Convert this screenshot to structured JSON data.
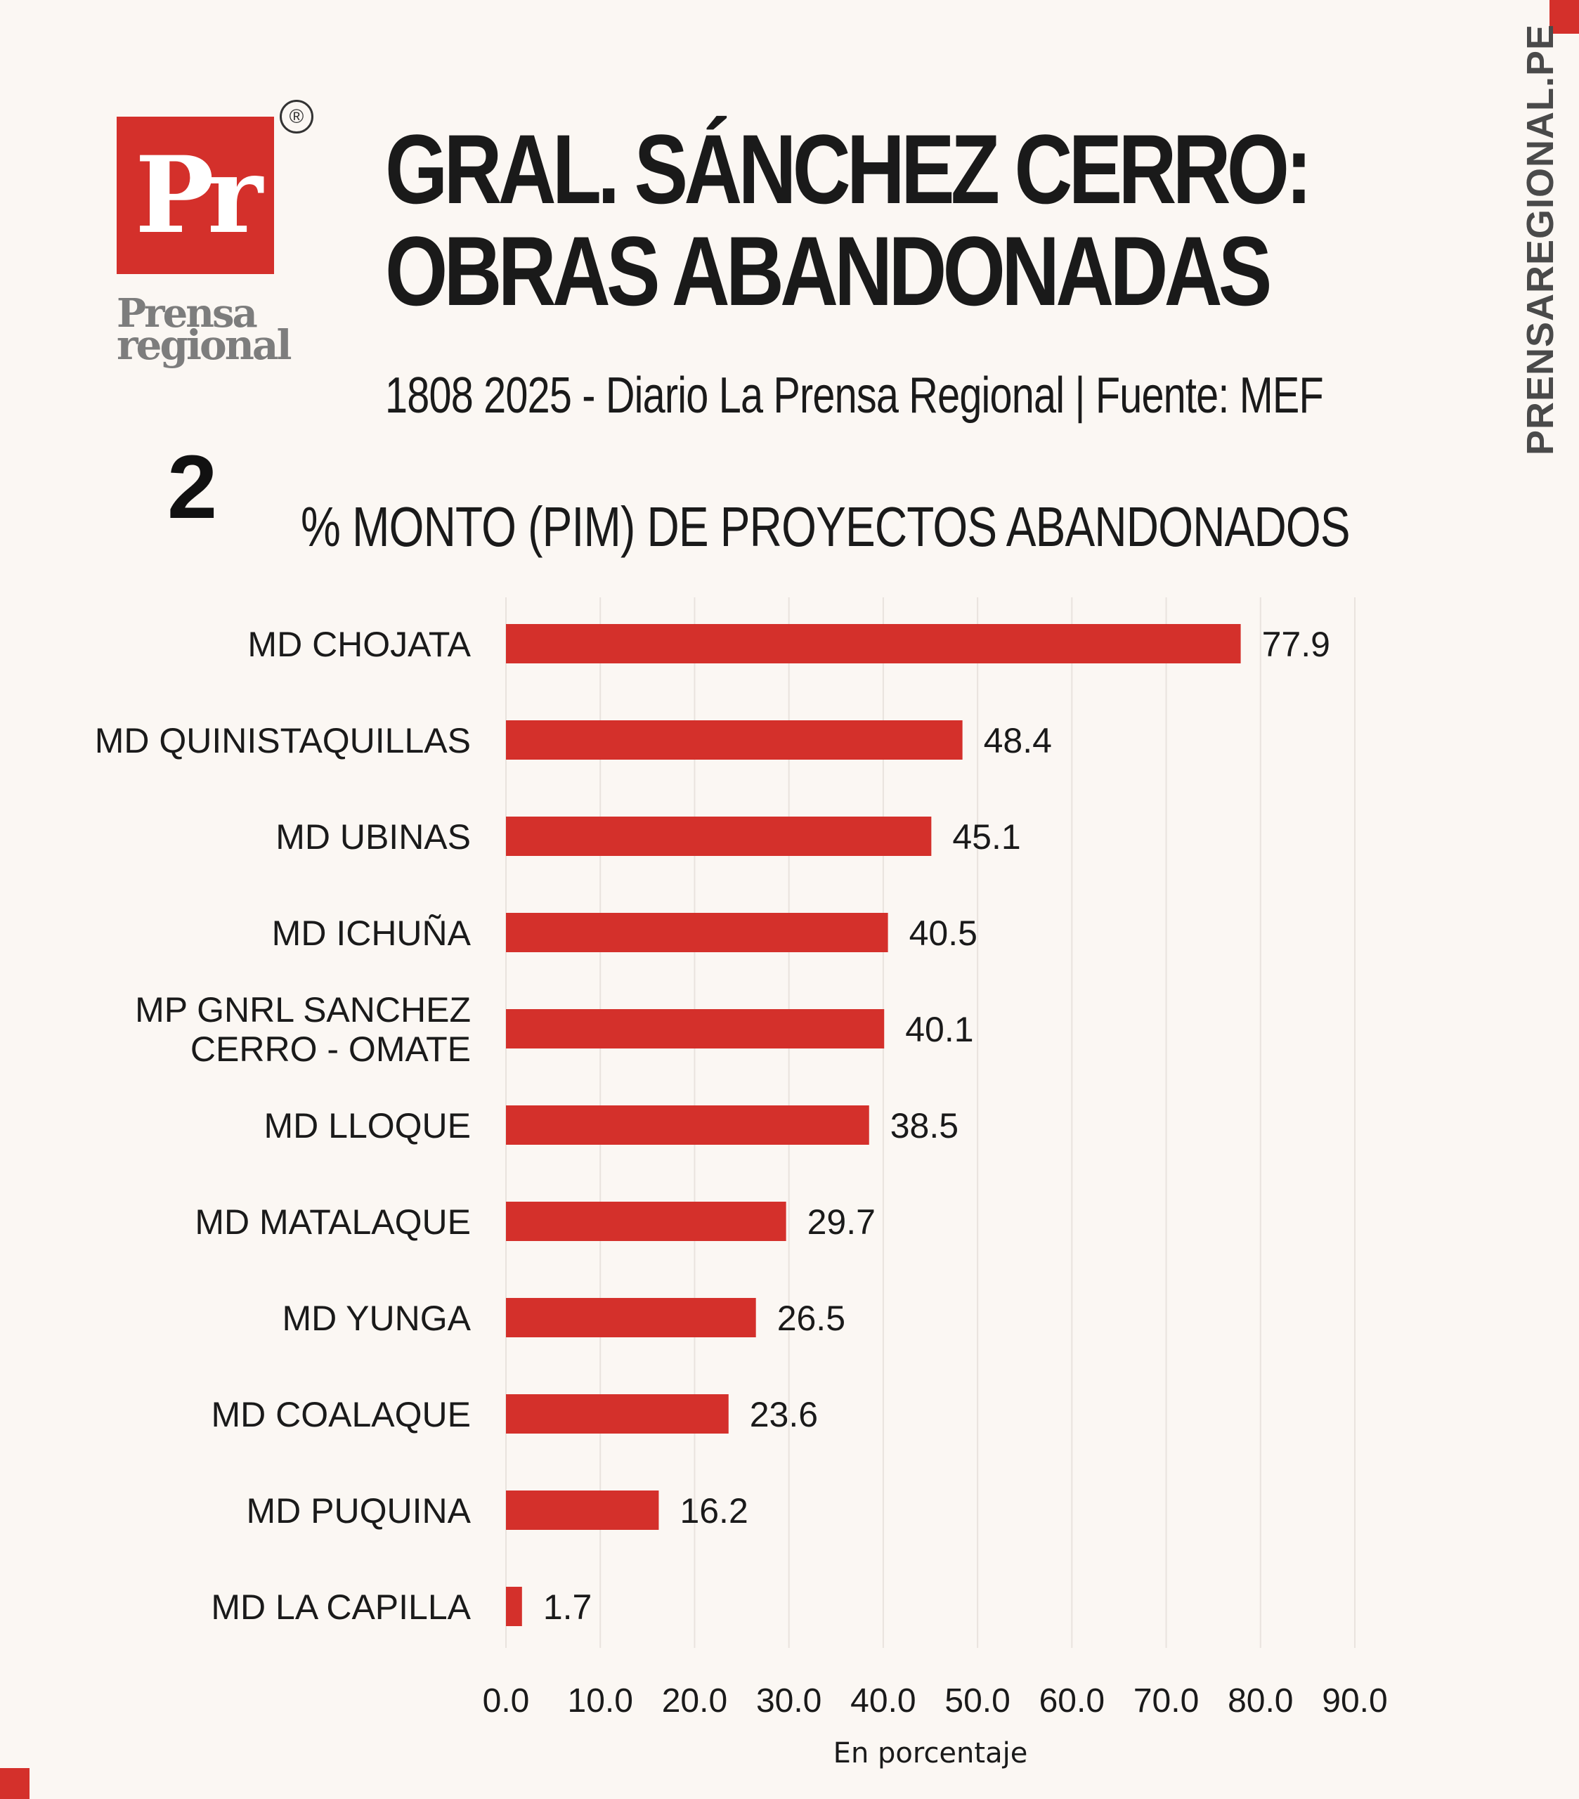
{
  "brand": {
    "logo_mark": "Pr",
    "logo_word_1": "Prensa",
    "logo_word_2": "regional",
    "registered": "®",
    "side_url": "PRENSAREGIONAL.PE",
    "accent_color": "#d4302b"
  },
  "header": {
    "title_line1": "GRAL. SÁNCHEZ CERRO:",
    "title_line2": "OBRAS ABANDONADAS",
    "subtitle": "1808 2025 - Diario La Prensa Regional | Fuente: MEF"
  },
  "chart_number": "2",
  "chart_data": {
    "type": "bar",
    "orientation": "horizontal",
    "title": "% MONTO (PIM) DE PROYECTOS ABANDONADOS",
    "xlabel": "En porcentaje",
    "ylabel": "",
    "categories": [
      "MD CHOJATA",
      "MD QUINISTAQUILLAS",
      "MD UBINAS",
      "MD ICHUÑA",
      "MP GNRL SANCHEZ CERRO - OMATE",
      "MD LLOQUE",
      "MD MATALAQUE",
      "MD YUNGA",
      "MD  COALAQUE",
      "MD PUQUINA",
      "MD LA CAPILLA"
    ],
    "category_lines": [
      [
        "MD CHOJATA"
      ],
      [
        "MD QUINISTAQUILLAS"
      ],
      [
        "MD UBINAS"
      ],
      [
        "MD ICHUÑA"
      ],
      [
        "MP GNRL SANCHEZ",
        "CERRO - OMATE"
      ],
      [
        "MD LLOQUE"
      ],
      [
        "MD MATALAQUE"
      ],
      [
        "MD YUNGA"
      ],
      [
        "MD  COALAQUE"
      ],
      [
        "MD PUQUINA"
      ],
      [
        "MD LA CAPILLA"
      ]
    ],
    "values": [
      77.9,
      48.4,
      45.1,
      40.5,
      40.1,
      38.5,
      29.7,
      26.5,
      23.6,
      16.2,
      1.7
    ],
    "value_labels": [
      "77.9",
      "48.4",
      "45.1",
      "40.5",
      "40.1",
      "38.5",
      "29.7",
      "26.5",
      "23.6",
      "16.2",
      "1.7"
    ],
    "xlim": [
      0,
      90
    ],
    "xticks": [
      0,
      10,
      20,
      30,
      40,
      50,
      60,
      70,
      80,
      90
    ],
    "xtick_labels": [
      "0.0",
      "10.0",
      "20.0",
      "30.0",
      "40.0",
      "50.0",
      "60.0",
      "70.0",
      "80.0",
      "90.0"
    ],
    "grid": true,
    "bar_color": "#d4302b",
    "gridline_color": "#e9e3de",
    "legend": "none"
  }
}
